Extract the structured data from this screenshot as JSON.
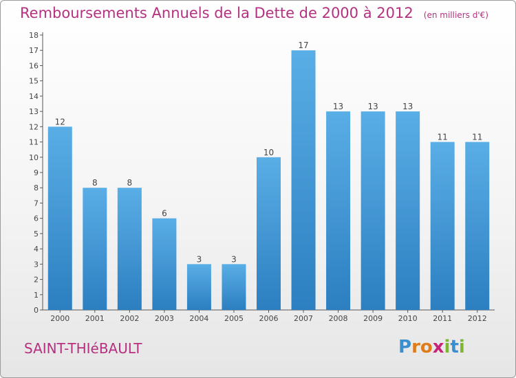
{
  "title": "Remboursements Annuels de la Dette de 2000 à 2012",
  "unit": "(en milliers d'€)",
  "place": "SAINT-THIéBAULT",
  "logo": {
    "text": "Proxiti",
    "letters": [
      "P",
      "r",
      "o",
      "x",
      "i",
      "t",
      "i"
    ],
    "colors": [
      "#3a8fd0",
      "#e07b1a",
      "#e07b1a",
      "#c8237a",
      "#7cb82f",
      "#3a8fd0",
      "#7cb82f"
    ]
  },
  "colors": {
    "title": "#b5307f",
    "bar_top": "#5aaee6",
    "bar_bottom": "#2c7fc0",
    "axis": "#555555"
  },
  "chart_data": {
    "type": "bar",
    "categories": [
      "2000",
      "2001",
      "2002",
      "2003",
      "2004",
      "2005",
      "2006",
      "2007",
      "2008",
      "2009",
      "2010",
      "2011",
      "2012"
    ],
    "values": [
      12,
      8,
      8,
      6,
      3,
      3,
      10,
      17,
      13,
      13,
      13,
      11,
      11
    ],
    "ylim": [
      0,
      18
    ],
    "yticks": [
      0,
      1,
      2,
      3,
      4,
      5,
      6,
      7,
      8,
      9,
      10,
      11,
      12,
      13,
      14,
      15,
      16,
      17,
      18
    ],
    "grid": false,
    "legend": "none"
  }
}
